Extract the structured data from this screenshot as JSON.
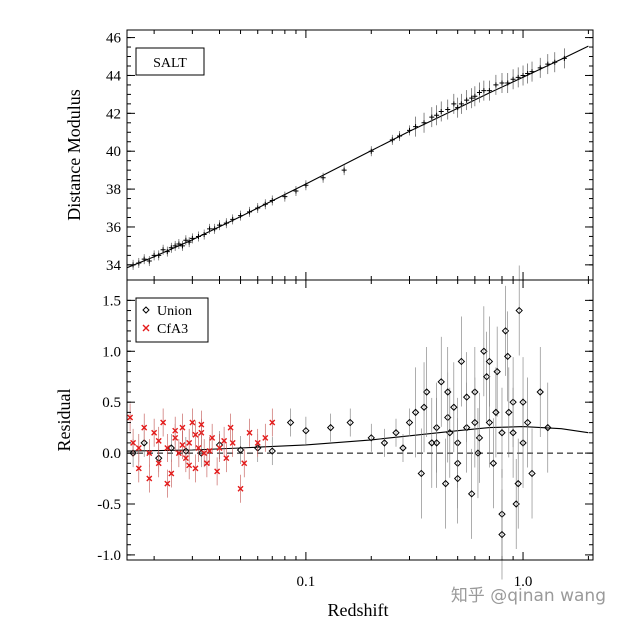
{
  "watermark": "知乎 @qinan wang",
  "chart_data": [
    {
      "type": "scatter",
      "panel": "top",
      "ylabel": "Distance Modulus",
      "xscale": "log",
      "xlim": [
        0.015,
        2.1
      ],
      "ylim": [
        33.2,
        46.4
      ],
      "yticks": [
        "34",
        "36",
        "38",
        "40",
        "42",
        "44",
        "46"
      ],
      "legend": {
        "label": "SALT",
        "placement": "top-left"
      },
      "model_curve": {
        "x": [
          0.015,
          0.02,
          0.03,
          0.05,
          0.1,
          0.2,
          0.3,
          0.5,
          0.7,
          1.0,
          1.5,
          2.0
        ],
        "y": [
          33.85,
          34.43,
          35.33,
          36.55,
          38.27,
          40.03,
          41.05,
          42.27,
          43.08,
          43.9,
          44.86,
          45.55
        ]
      },
      "series": [
        {
          "name": "SALT",
          "color": "#000000",
          "marker": "plus",
          "x": [
            0.016,
            0.017,
            0.018,
            0.019,
            0.02,
            0.021,
            0.022,
            0.023,
            0.024,
            0.025,
            0.026,
            0.027,
            0.028,
            0.029,
            0.03,
            0.032,
            0.034,
            0.036,
            0.038,
            0.04,
            0.043,
            0.046,
            0.05,
            0.055,
            0.06,
            0.065,
            0.07,
            0.08,
            0.09,
            0.1,
            0.12,
            0.15,
            0.2,
            0.25,
            0.27,
            0.3,
            0.32,
            0.35,
            0.38,
            0.4,
            0.42,
            0.45,
            0.48,
            0.5,
            0.52,
            0.55,
            0.58,
            0.6,
            0.63,
            0.66,
            0.7,
            0.75,
            0.8,
            0.85,
            0.9,
            0.95,
            1.0,
            1.05,
            1.1,
            1.2,
            1.3,
            1.4,
            1.55
          ],
          "y": [
            34.0,
            34.1,
            34.3,
            34.2,
            34.5,
            34.5,
            34.8,
            34.7,
            34.9,
            35.0,
            35.1,
            35.0,
            35.3,
            35.2,
            35.4,
            35.5,
            35.6,
            35.9,
            35.9,
            36.1,
            36.2,
            36.4,
            36.6,
            36.8,
            37.0,
            37.2,
            37.4,
            37.6,
            37.9,
            38.2,
            38.6,
            39.0,
            40.0,
            40.6,
            40.8,
            41.1,
            41.3,
            41.5,
            41.8,
            41.9,
            42.1,
            42.2,
            42.5,
            42.3,
            42.5,
            42.7,
            42.8,
            42.9,
            43.1,
            43.2,
            43.2,
            43.5,
            43.6,
            43.6,
            43.8,
            43.9,
            44.0,
            44.1,
            44.2,
            44.4,
            44.6,
            44.7,
            44.9
          ]
        }
      ]
    },
    {
      "type": "scatter",
      "panel": "bottom",
      "xlabel": "Redshift",
      "ylabel": "Residual",
      "xscale": "log",
      "xlim": [
        0.015,
        2.1
      ],
      "ylim": [
        -1.05,
        1.7
      ],
      "xticks": [
        "0.1",
        "1.0"
      ],
      "yticks": [
        "-1.0",
        "-0.5",
        "0.0",
        "0.5",
        "1.0",
        "1.5"
      ],
      "legend": {
        "placement": "top-left"
      },
      "reference_line": {
        "y": 0.0,
        "style": "dashed"
      },
      "model_curve": {
        "x": [
          0.015,
          0.03,
          0.05,
          0.1,
          0.2,
          0.3,
          0.5,
          0.7,
          1.0,
          1.5,
          2.0
        ],
        "y": [
          0.02,
          0.03,
          0.05,
          0.08,
          0.13,
          0.17,
          0.22,
          0.25,
          0.26,
          0.24,
          0.2
        ]
      },
      "series": [
        {
          "name": "Union",
          "color": "#000000",
          "marker": "diamond",
          "x": [
            0.016,
            0.018,
            0.021,
            0.024,
            0.028,
            0.033,
            0.04,
            0.05,
            0.06,
            0.07,
            0.085,
            0.1,
            0.13,
            0.16,
            0.2,
            0.23,
            0.26,
            0.28,
            0.3,
            0.32,
            0.34,
            0.36,
            0.38,
            0.4,
            0.42,
            0.44,
            0.46,
            0.48,
            0.5,
            0.52,
            0.55,
            0.58,
            0.6,
            0.63,
            0.66,
            0.7,
            0.73,
            0.76,
            0.8,
            0.83,
            0.86,
            0.9,
            0.93,
            0.96,
            1.0,
            1.05,
            1.1,
            1.2,
            1.3,
            0.45,
            0.5,
            0.55,
            0.62,
            0.68,
            0.75,
            0.8,
            0.85,
            0.9,
            0.95,
            1.0,
            0.35,
            0.4,
            0.45,
            0.5,
            0.6,
            0.7,
            0.8
          ],
          "y": [
            0.0,
            0.1,
            -0.05,
            0.05,
            0.02,
            0.0,
            0.08,
            0.03,
            0.05,
            0.02,
            0.3,
            0.22,
            0.25,
            0.3,
            0.15,
            0.1,
            0.2,
            0.05,
            0.3,
            0.4,
            -0.2,
            0.6,
            0.1,
            0.25,
            0.7,
            -0.3,
            0.2,
            0.45,
            0.1,
            0.9,
            0.25,
            -0.4,
            0.6,
            0.15,
            1.0,
            0.3,
            -0.1,
            0.8,
            0.2,
            1.2,
            0.4,
            0.5,
            -0.5,
            1.4,
            0.1,
            0.3,
            -0.2,
            0.6,
            0.25,
            0.35,
            -0.1,
            0.55,
            0.0,
            0.75,
            0.4,
            -0.6,
            0.95,
            0.2,
            -0.3,
            0.5,
            0.45,
            0.1,
            0.6,
            -0.25,
            0.3,
            0.9,
            -0.8
          ]
        },
        {
          "name": "CfA3",
          "color": "#e41a1a",
          "marker": "cross",
          "x": [
            0.0155,
            0.016,
            0.017,
            0.018,
            0.019,
            0.02,
            0.021,
            0.022,
            0.023,
            0.024,
            0.025,
            0.026,
            0.027,
            0.028,
            0.029,
            0.03,
            0.031,
            0.032,
            0.033,
            0.034,
            0.035,
            0.037,
            0.04,
            0.043,
            0.046,
            0.05,
            0.055,
            0.06,
            0.065,
            0.07,
            0.017,
            0.019,
            0.021,
            0.023,
            0.025,
            0.027,
            0.029,
            0.031,
            0.033,
            0.036,
            0.039,
            0.042,
            0.045,
            0.052
          ],
          "y": [
            0.35,
            0.1,
            -0.15,
            0.25,
            0.0,
            0.2,
            -0.1,
            0.3,
            0.05,
            -0.2,
            0.15,
            0.0,
            0.25,
            -0.05,
            0.1,
            0.3,
            -0.15,
            0.05,
            0.2,
            0.0,
            -0.1,
            0.15,
            0.05,
            -0.05,
            0.1,
            -0.35,
            0.2,
            0.1,
            0.15,
            0.3,
            0.05,
            -0.25,
            0.12,
            -0.3,
            0.22,
            0.08,
            -0.12,
            0.18,
            0.28,
            0.02,
            -0.18,
            0.12,
            0.25,
            -0.1
          ]
        }
      ]
    }
  ]
}
